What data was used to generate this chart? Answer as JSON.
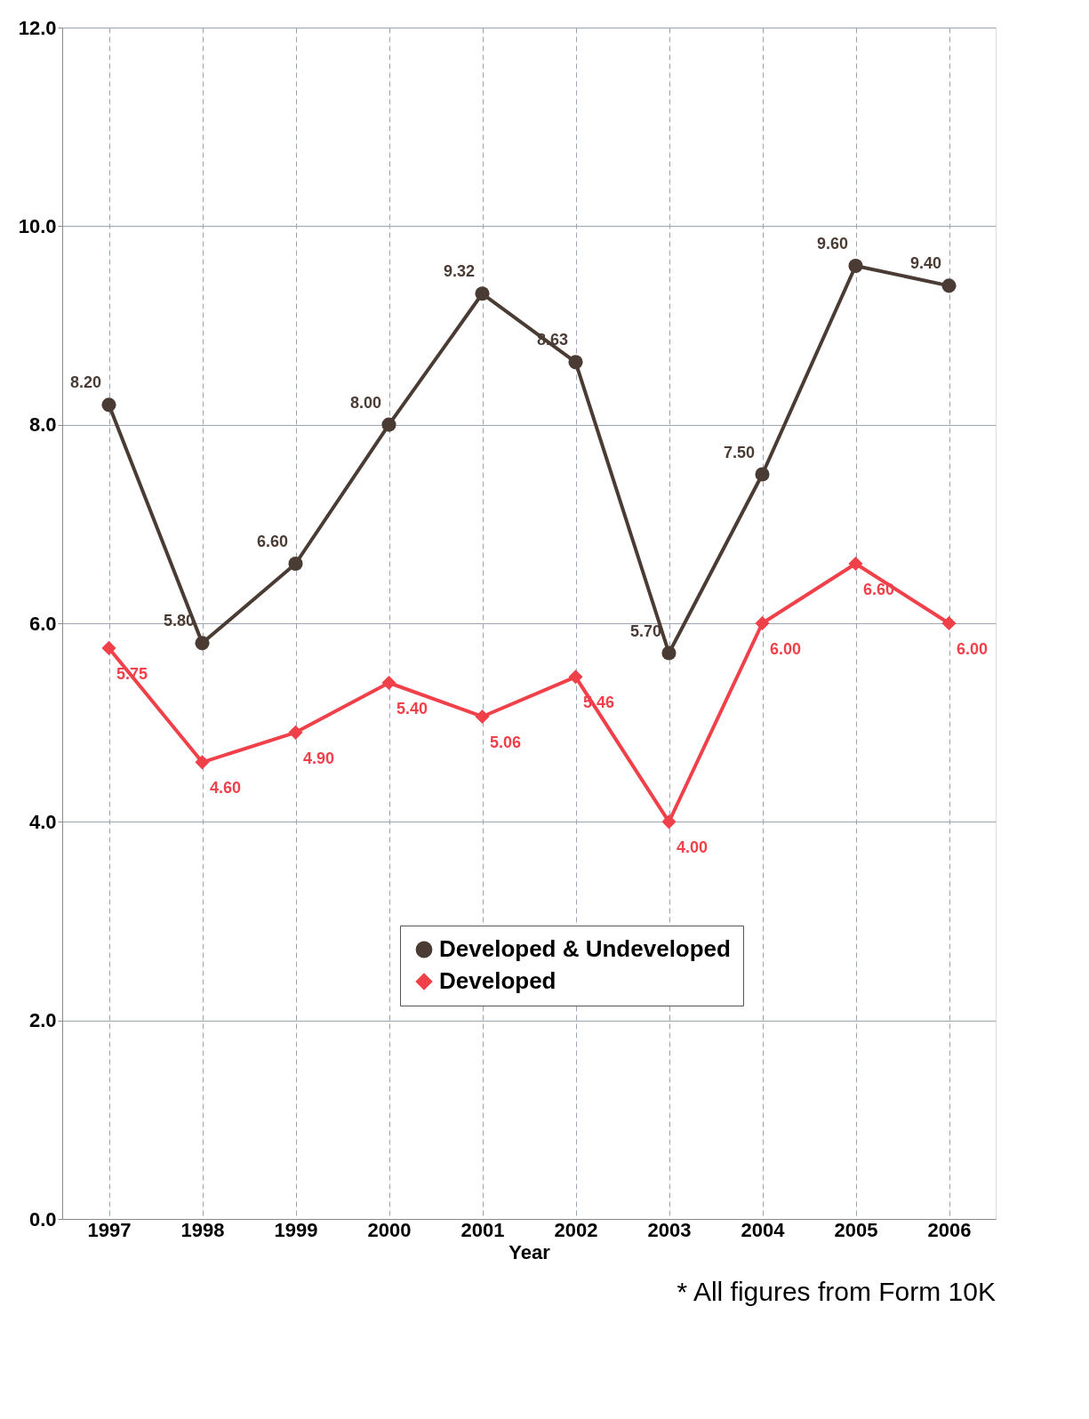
{
  "chart_data": {
    "type": "line",
    "xlabel": "Year",
    "categories": [
      "1997",
      "1998",
      "1999",
      "2000",
      "2001",
      "2002",
      "2003",
      "2004",
      "2005",
      "2006"
    ],
    "series": [
      {
        "name": "Developed & Undeveloped",
        "color": "#4a3c34",
        "marker": "circle",
        "values": [
          8.2,
          5.8,
          6.6,
          8.0,
          9.32,
          8.63,
          5.7,
          7.5,
          9.6,
          9.4
        ],
        "value_labels": [
          "8.20",
          "5.80",
          "6.60",
          "8.00",
          "9.32",
          "8.63",
          "5.70",
          "7.50",
          "9.60",
          "9.40"
        ]
      },
      {
        "name": "Developed",
        "color": "#f0404a",
        "marker": "diamond",
        "values": [
          5.75,
          4.6,
          4.9,
          5.4,
          5.06,
          5.46,
          4.0,
          6.0,
          6.6,
          6.0
        ],
        "value_labels": [
          "5.75",
          "4.60",
          "4.90",
          "5.40",
          "5.06",
          "5.46",
          "4.00",
          "6.00",
          "6.60",
          "6.00"
        ]
      }
    ],
    "ylim": [
      0,
      12
    ],
    "yticks": [
      {
        "value": 0,
        "label": "0.0"
      },
      {
        "value": 2,
        "label": "2.0"
      },
      {
        "value": 4,
        "label": "4.0"
      },
      {
        "value": 6,
        "label": "6.0"
      },
      {
        "value": 8,
        "label": "8.0"
      },
      {
        "value": 10,
        "label": "10.0"
      },
      {
        "value": 12,
        "label": "12.0"
      }
    ],
    "grid": true,
    "legend": "bottom",
    "annotations": [
      "* All figures from Form 10K"
    ]
  }
}
